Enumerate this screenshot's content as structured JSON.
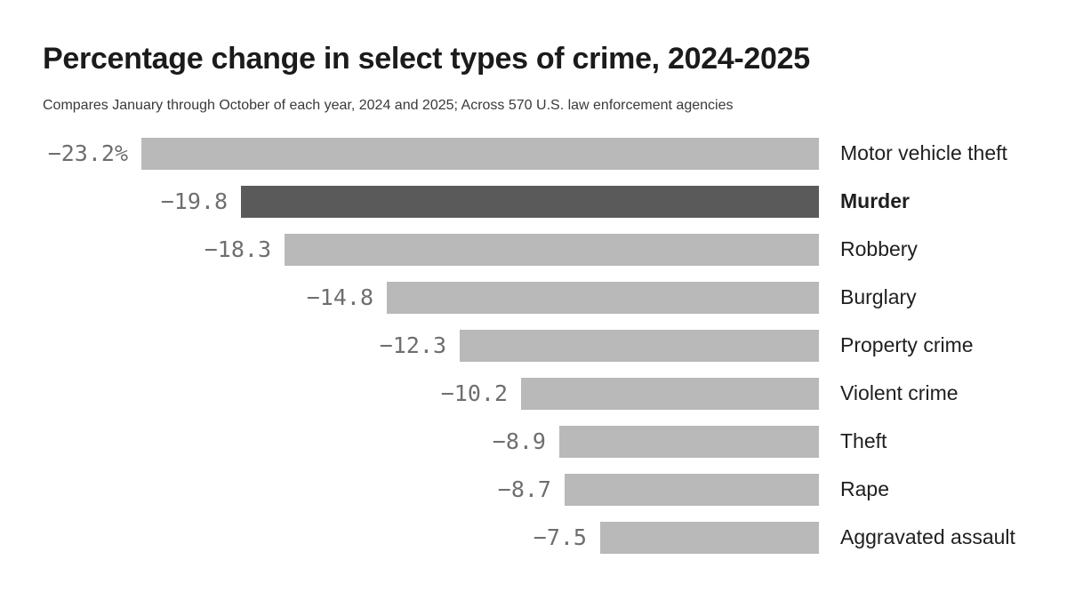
{
  "title": "Percentage change in select types of crime, 2024-2025",
  "subtitle": "Compares January through October of each year, 2024 and 2025; Across 570 U.S. law enforcement agencies",
  "colors": {
    "background": "#ffffff",
    "bar": "#b9b9b9",
    "bar_highlight": "#5a5a5a",
    "value_label": "#6e6e6e",
    "category_label": "#1f1f1f",
    "title": "#1b1b1b",
    "subtitle": "#3a3a3a"
  },
  "chart_data": {
    "type": "bar",
    "orientation": "horizontal",
    "title": "Percentage change in select types of crime, 2024-2025",
    "subtitle": "Compares January through October of each year, 2024 and 2025; Across 570 U.S. law enforcement agencies",
    "xlabel": "",
    "ylabel": "",
    "unit": "percent",
    "xlim": [
      -23.2,
      0
    ],
    "grid": false,
    "legend": false,
    "bars_aligned_right_at_zero": true,
    "categories": [
      "Motor vehicle theft",
      "Murder",
      "Robbery",
      "Burglary",
      "Property crime",
      "Violent crime",
      "Theft",
      "Rape",
      "Aggravated assault"
    ],
    "values": [
      -23.2,
      -19.8,
      -18.3,
      -14.8,
      -12.3,
      -10.2,
      -8.9,
      -8.7,
      -7.5
    ],
    "value_labels": [
      "−23.2%",
      "−19.8",
      "−18.3",
      "−14.8",
      "−12.3",
      "−10.2",
      "−8.9",
      "−8.7",
      "−7.5"
    ],
    "highlighted_category": "Murder"
  }
}
